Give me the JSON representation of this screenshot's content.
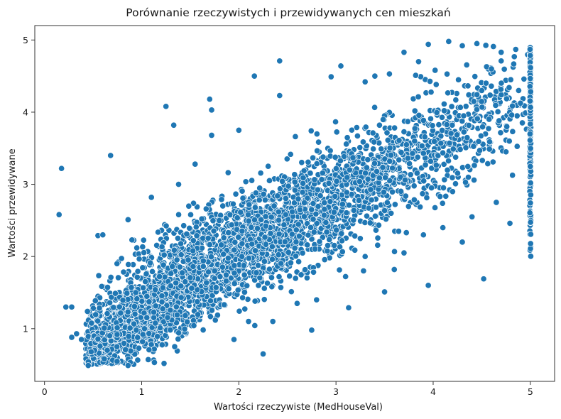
{
  "chart_data": {
    "type": "scatter",
    "title": "Porównanie rzeczywistych i przewidywanych cen mieszkań",
    "xlabel": "Wartości rzeczywiste (MedHouseVal)",
    "ylabel": "Wartości przewidywane",
    "xlim": [
      -0.1,
      5.25
    ],
    "ylim": [
      0.27,
      5.2
    ],
    "xticks": [
      "0",
      "1",
      "2",
      "3",
      "4",
      "5"
    ],
    "yticks": [
      "1",
      "2",
      "3",
      "4",
      "5"
    ],
    "grid": false,
    "marker_color": "#1f77b4",
    "marker_edge_color": "#ffffff",
    "x_cap_value": 5.0,
    "point_count_shown": "dense (~4000)",
    "points_explicit": [
      [
        0.15,
        2.58
      ],
      [
        0.175,
        3.22
      ],
      [
        0.22,
        1.3
      ],
      [
        0.28,
        1.3
      ],
      [
        0.28,
        0.88
      ],
      [
        0.33,
        0.93
      ],
      [
        0.38,
        0.85
      ],
      [
        0.48,
        0.68
      ],
      [
        0.45,
        0.49
      ],
      [
        0.55,
        2.29
      ],
      [
        0.6,
        2.3
      ],
      [
        0.68,
        3.4
      ],
      [
        0.86,
        0.49
      ],
      [
        0.86,
        2.51
      ],
      [
        1.25,
        4.08
      ],
      [
        1.33,
        3.82
      ],
      [
        1.7,
        4.18
      ],
      [
        1.72,
        4.03
      ],
      [
        2.16,
        4.5
      ],
      [
        2.42,
        4.71
      ],
      [
        2.42,
        4.23
      ],
      [
        2.25,
        0.65
      ],
      [
        2.75,
        0.98
      ],
      [
        2.95,
        4.49
      ],
      [
        3.13,
        1.29
      ],
      [
        3.5,
        1.51
      ],
      [
        3.95,
        1.6
      ],
      [
        4.52,
        1.69
      ],
      [
        4.79,
        2.46
      ],
      [
        3.05,
        4.64
      ],
      [
        3.7,
        4.83
      ],
      [
        3.95,
        4.94
      ],
      [
        4.16,
        4.98
      ],
      [
        4.3,
        4.92
      ],
      [
        4.45,
        4.95
      ],
      [
        4.62,
        4.91
      ],
      [
        4.7,
        4.83
      ],
      [
        4.85,
        4.87
      ],
      [
        4.55,
        4.63
      ],
      [
        3.4,
        4.5
      ],
      [
        3.55,
        4.53
      ],
      [
        3.82,
        4.51
      ],
      [
        4.02,
        4.58
      ],
      [
        2.0,
        3.75
      ],
      [
        1.55,
        3.28
      ],
      [
        1.72,
        3.68
      ],
      [
        1.38,
        3.0
      ],
      [
        1.1,
        2.82
      ],
      [
        0.9,
        2.23
      ],
      [
        0.95,
        2.12
      ],
      [
        3.3,
        4.42
      ],
      [
        3.85,
        4.7
      ],
      [
        4.5,
        4.3
      ],
      [
        4.6,
        4.6
      ],
      [
        4.88,
        4.3
      ],
      [
        3.6,
        1.82
      ],
      [
        3.7,
        2.05
      ],
      [
        3.9,
        2.3
      ],
      [
        4.1,
        2.4
      ],
      [
        4.3,
        2.2
      ],
      [
        4.4,
        2.55
      ],
      [
        4.2,
        2.9
      ],
      [
        4.65,
        2.75
      ],
      [
        3.3,
        2.0
      ],
      [
        3.25,
        2.25
      ],
      [
        2.6,
        1.35
      ],
      [
        2.8,
        1.4
      ],
      [
        2.35,
        1.1
      ],
      [
        2.1,
        1.1
      ],
      [
        1.95,
        0.85
      ]
    ],
    "clusters": [
      {
        "cx": 1.0,
        "cy": 1.15,
        "sx": 0.33,
        "sy": 0.33,
        "n": 1100
      },
      {
        "cx": 0.62,
        "cy": 0.78,
        "sx": 0.12,
        "sy": 0.15,
        "n": 220
      },
      {
        "cx": 1.7,
        "cy": 1.9,
        "sx": 0.42,
        "sy": 0.45,
        "n": 900
      },
      {
        "cx": 2.45,
        "cy": 2.45,
        "sx": 0.45,
        "sy": 0.42,
        "n": 900
      },
      {
        "cx": 3.25,
        "cy": 3.0,
        "sx": 0.45,
        "sy": 0.45,
        "n": 520
      },
      {
        "cx": 4.0,
        "cy": 3.55,
        "sx": 0.45,
        "sy": 0.45,
        "n": 300
      },
      {
        "cx": 4.6,
        "cy": 4.0,
        "sx": 0.3,
        "sy": 0.4,
        "n": 120
      }
    ],
    "cap_column": {
      "x": 5.0,
      "y_min": 1.95,
      "y_max": 4.98,
      "n": 170
    }
  }
}
